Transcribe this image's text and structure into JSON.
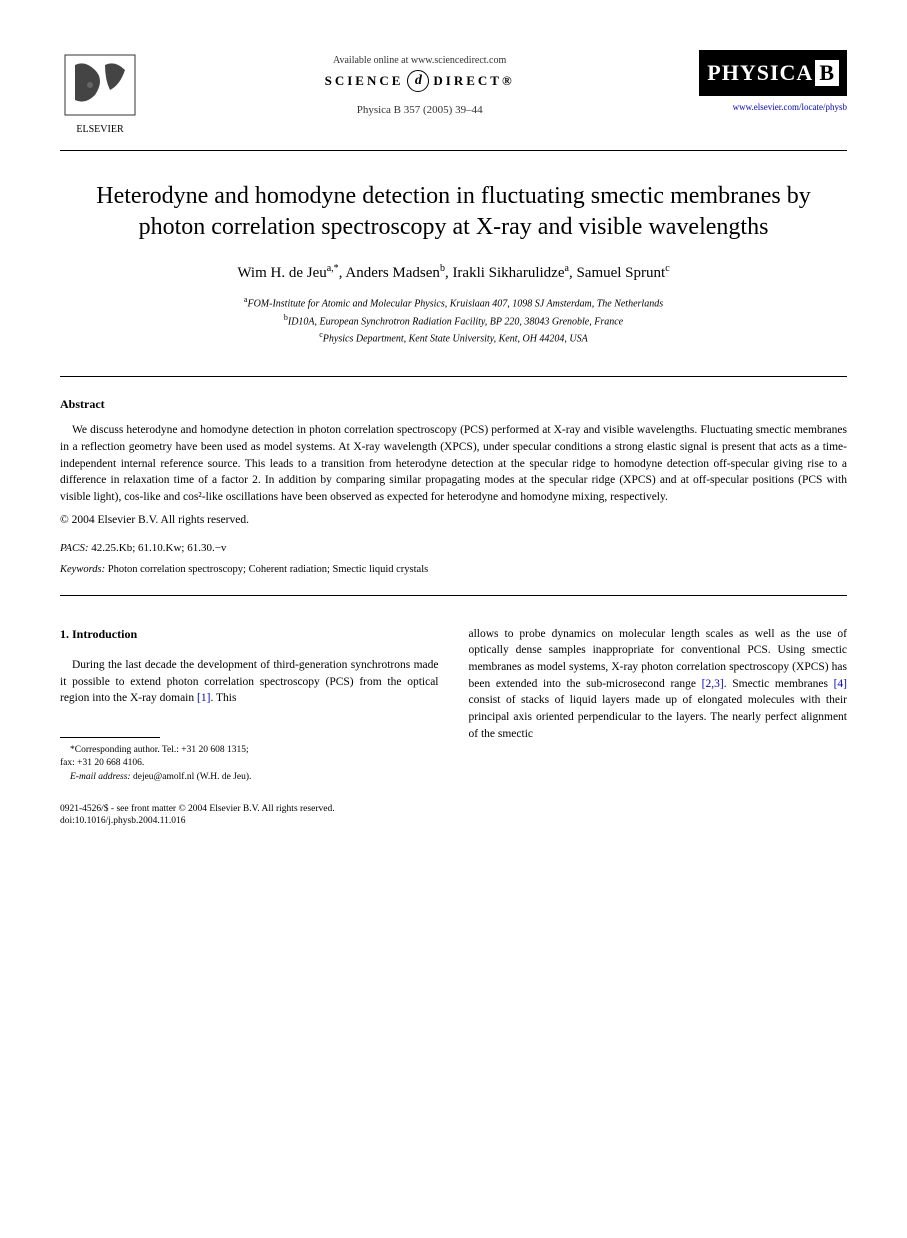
{
  "header": {
    "available_online": "Available online at www.sciencedirect.com",
    "science_direct_left": "SCIENCE",
    "science_direct_right": "DIRECT®",
    "journal_ref": "Physica B 357 (2005) 39–44",
    "physica_text": "PHYSICA",
    "physica_letter": "B",
    "journal_url": "www.elsevier.com/locate/physb",
    "elsevier_name": "ELSEVIER"
  },
  "title": "Heterodyne and homodyne detection in fluctuating smectic membranes by photon correlation spectroscopy at X-ray and visible wavelengths",
  "authors_html": "Wim H. de Jeu<sup>a,*</sup>, Anders Madsen<sup>b</sup>, Irakli Sikharulidze<sup>a</sup>, Samuel Sprunt<sup>c</sup>",
  "affiliations": [
    {
      "sup": "a",
      "text": "FOM-Institute for Atomic and Molecular Physics, Kruislaan 407, 1098 SJ Amsterdam, The Netherlands"
    },
    {
      "sup": "b",
      "text": "ID10A, European Synchrotron Radiation Facility, BP 220, 38043 Grenoble, France"
    },
    {
      "sup": "c",
      "text": "Physics Department, Kent State University, Kent, OH 44204, USA"
    }
  ],
  "abstract": {
    "heading": "Abstract",
    "text": "We discuss heterodyne and homodyne detection in photon correlation spectroscopy (PCS) performed at X-ray and visible wavelengths. Fluctuating smectic membranes in a reflection geometry have been used as model systems. At X-ray wavelength (XPCS), under specular conditions a strong elastic signal is present that acts as a time-independent internal reference source. This leads to a transition from heterodyne detection at the specular ridge to homodyne detection off-specular giving rise to a difference in relaxation time of a factor 2. In addition by comparing similar propagating modes at the specular ridge (XPCS) and at off-specular positions (PCS with visible light), cos-like and cos²-like oscillations have been observed as expected for heterodyne and homodyne mixing, respectively.",
    "copyright": "© 2004 Elsevier B.V. All rights reserved."
  },
  "pacs": {
    "label": "PACS:",
    "value": "42.25.Kb; 61.10.Kw; 61.30.−v"
  },
  "keywords": {
    "label": "Keywords:",
    "value": "Photon correlation spectroscopy; Coherent radiation; Smectic liquid crystals"
  },
  "section1": {
    "heading": "1. Introduction",
    "col1": "During the last decade the development of third-generation synchrotrons made it possible to extend photon correlation spectroscopy (PCS) from the optical region into the X-ray domain ",
    "cite1": "[1]",
    "col1_end": ". This",
    "col2_start": "allows to probe dynamics on molecular length scales as well as the use of optically dense samples inappropriate for conventional PCS. Using smectic membranes as model systems, X-ray photon correlation spectroscopy (XPCS) has been extended into the sub-microsecond range ",
    "cite2": "[2,3]",
    "col2_mid": ". Smectic membranes ",
    "cite3": "[4]",
    "col2_end": " consist of stacks of liquid layers made up of elongated molecules with their principal axis oriented perpendicular to the layers. The nearly perfect alignment of the smectic"
  },
  "footnote": {
    "corresponding": "*Corresponding author. Tel.: +31 20 608 1315;",
    "fax": "fax: +31 20 668 4106.",
    "email_label": "E-mail address:",
    "email": "dejeu@amolf.nl (W.H. de Jeu)."
  },
  "footer": {
    "issn": "0921-4526/$ - see front matter © 2004 Elsevier B.V. All rights reserved.",
    "doi": "doi:10.1016/j.physb.2004.11.016"
  }
}
